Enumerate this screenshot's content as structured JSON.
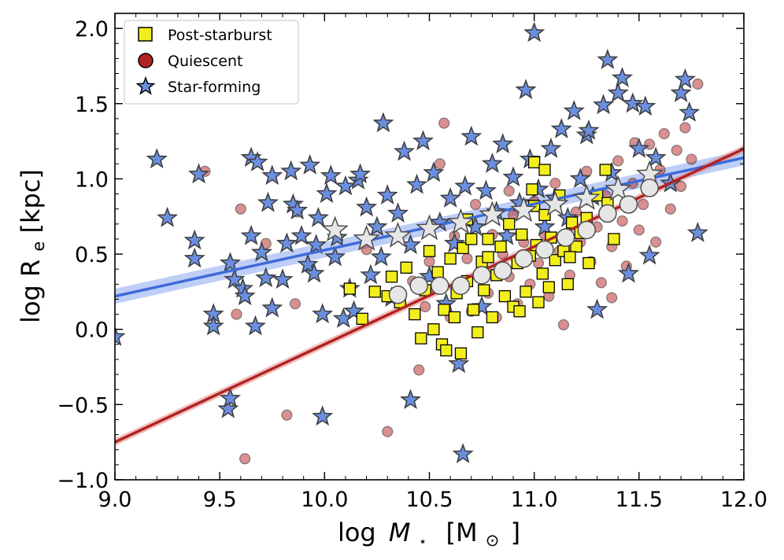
{
  "chart_data": {
    "type": "scatter",
    "title": "",
    "xlabel": "log M⋆ [M⊙]",
    "ylabel": "log R_e [kpc]",
    "xlim": [
      9.0,
      12.0
    ],
    "ylim": [
      -1.0,
      2.1
    ],
    "xticks": [
      9.0,
      9.5,
      10.0,
      10.5,
      11.0,
      11.5,
      12.0
    ],
    "xtick_labels": [
      "9.0",
      "9.5",
      "10.0",
      "10.5",
      "11.0",
      "11.5",
      "12.0"
    ],
    "yticks": [
      -1.0,
      -0.5,
      0.0,
      0.5,
      1.0,
      1.5,
      2.0
    ],
    "ytick_labels": [
      "−1.0",
      "−0.5",
      "0.0",
      "0.5",
      "1.0",
      "1.5",
      "2.0"
    ],
    "x_minor_step": 0.1,
    "y_minor_step": 0.1,
    "axis_title_x": {
      "prefix": "log",
      "symbol": "M",
      "sub": "⋆",
      "unit_open": "[M",
      "unit_sub": "⊙",
      "unit_close": "]"
    },
    "axis_title_y": {
      "prefix": "log  R",
      "sub": "e",
      "suffix": " [kpc]"
    },
    "legend": {
      "position": "top-left",
      "entries": [
        {
          "label": "Post-starburst",
          "marker": "square",
          "color": "#f2ee1c"
        },
        {
          "label": "Quiescent",
          "marker": "circle",
          "color": "#b22222"
        },
        {
          "label": "Star-forming",
          "marker": "star",
          "color": "#6b8fe0"
        }
      ]
    },
    "series": [
      {
        "name": "Star-forming",
        "marker": "star",
        "color": "#6b8fe0",
        "edge": "#404040",
        "points": [
          [
            9.0,
            -0.05
          ],
          [
            9.2,
            1.13
          ],
          [
            9.25,
            0.74
          ],
          [
            9.38,
            0.59
          ],
          [
            9.38,
            0.47
          ],
          [
            9.4,
            1.03
          ],
          [
            9.47,
            0.1
          ],
          [
            9.47,
            0.02
          ],
          [
            9.54,
            -0.53
          ],
          [
            9.55,
            -0.46
          ],
          [
            9.55,
            0.44
          ],
          [
            9.57,
            0.33
          ],
          [
            9.61,
            0.27
          ],
          [
            9.62,
            0.22
          ],
          [
            9.65,
            0.62
          ],
          [
            9.65,
            1.14
          ],
          [
            9.67,
            0.02
          ],
          [
            9.68,
            1.11
          ],
          [
            9.7,
            0.51
          ],
          [
            9.72,
            0.34
          ],
          [
            9.73,
            0.84
          ],
          [
            9.75,
            0.14
          ],
          [
            9.75,
            1.02
          ],
          [
            9.8,
            0.33
          ],
          [
            9.82,
            0.57
          ],
          [
            9.84,
            1.05
          ],
          [
            9.85,
            0.83
          ],
          [
            9.87,
            0.79
          ],
          [
            9.89,
            0.62
          ],
          [
            9.92,
            0.43
          ],
          [
            9.93,
            1.09
          ],
          [
            9.95,
            0.37
          ],
          [
            9.96,
            0.56
          ],
          [
            9.97,
            0.74
          ],
          [
            9.99,
            0.1
          ],
          [
            9.99,
            -0.58
          ],
          [
            10.01,
            0.9
          ],
          [
            10.03,
            1.02
          ],
          [
            10.05,
            0.48
          ],
          [
            10.06,
            0.61
          ],
          [
            10.09,
            0.07
          ],
          [
            10.1,
            0.95
          ],
          [
            10.12,
            0.27
          ],
          [
            10.14,
            0.12
          ],
          [
            10.16,
            0.99
          ],
          [
            10.17,
            1.03
          ],
          [
            10.2,
            0.81
          ],
          [
            10.22,
            0.36
          ],
          [
            10.25,
            0.68
          ],
          [
            10.27,
            0.48
          ],
          [
            10.28,
            1.37
          ],
          [
            10.3,
            0.89
          ],
          [
            10.32,
            0.21
          ],
          [
            10.35,
            0.77
          ],
          [
            10.38,
            1.18
          ],
          [
            10.41,
            -0.47
          ],
          [
            10.41,
            0.56
          ],
          [
            10.44,
            0.96
          ],
          [
            10.47,
            1.25
          ],
          [
            10.5,
            0.35
          ],
          [
            10.52,
            1.04
          ],
          [
            10.55,
            0.71
          ],
          [
            10.58,
            0.17
          ],
          [
            10.6,
            0.87
          ],
          [
            10.62,
            0.57
          ],
          [
            10.64,
            -0.23
          ],
          [
            10.66,
            -0.83
          ],
          [
            10.67,
            0.95
          ],
          [
            10.7,
            1.28
          ],
          [
            10.72,
            0.68
          ],
          [
            10.75,
            0.15
          ],
          [
            10.77,
            0.92
          ],
          [
            10.8,
            1.1
          ],
          [
            10.82,
            0.78
          ],
          [
            10.85,
            1.23
          ],
          [
            10.87,
            0.62
          ],
          [
            10.9,
            1.01
          ],
          [
            10.93,
            0.84
          ],
          [
            10.96,
            1.59
          ],
          [
            10.98,
            1.13
          ],
          [
            11.0,
            1.97
          ],
          [
            11.02,
            0.93
          ],
          [
            11.05,
            0.68
          ],
          [
            11.08,
            1.2
          ],
          [
            11.1,
            0.87
          ],
          [
            11.13,
            1.33
          ],
          [
            11.16,
            0.74
          ],
          [
            11.19,
            1.45
          ],
          [
            11.22,
            1.0
          ],
          [
            11.25,
            1.29
          ],
          [
            11.26,
            1.32
          ],
          [
            11.28,
            0.88
          ],
          [
            11.3,
            0.13
          ],
          [
            11.33,
            1.49
          ],
          [
            11.35,
            1.79
          ],
          [
            11.37,
            1.04
          ],
          [
            11.4,
            1.57
          ],
          [
            11.42,
            1.67
          ],
          [
            11.45,
            0.37
          ],
          [
            11.47,
            1.5
          ],
          [
            11.5,
            1.2
          ],
          [
            11.53,
            1.48
          ],
          [
            11.55,
            0.49
          ],
          [
            11.58,
            1.14
          ],
          [
            11.65,
            0.97
          ],
          [
            11.7,
            1.57
          ],
          [
            11.72,
            1.66
          ],
          [
            11.74,
            1.44
          ],
          [
            11.78,
            0.64
          ]
        ]
      },
      {
        "name": "Quiescent",
        "marker": "circle",
        "color": "#b22222",
        "edge": "#404040",
        "points": [
          [
            9.43,
            1.05
          ],
          [
            9.58,
            0.1
          ],
          [
            9.6,
            0.8
          ],
          [
            9.62,
            -0.86
          ],
          [
            9.72,
            0.57
          ],
          [
            9.82,
            -0.57
          ],
          [
            9.86,
            0.17
          ],
          [
            9.87,
            0.78
          ],
          [
            10.05,
            0.65
          ],
          [
            10.2,
            0.53
          ],
          [
            10.3,
            -0.68
          ],
          [
            10.42,
            0.32
          ],
          [
            10.45,
            -0.27
          ],
          [
            10.48,
            0.15
          ],
          [
            10.5,
            0.45
          ],
          [
            10.52,
            0.27
          ],
          [
            10.55,
            1.1
          ],
          [
            10.57,
            1.37
          ],
          [
            10.6,
            0.08
          ],
          [
            10.62,
            0.62
          ],
          [
            10.65,
            0.3
          ],
          [
            10.68,
            0.47
          ],
          [
            10.7,
            0.12
          ],
          [
            10.72,
            0.83
          ],
          [
            10.75,
            0.4
          ],
          [
            10.78,
            0.24
          ],
          [
            10.8,
            0.63
          ],
          [
            10.82,
            0.08
          ],
          [
            10.85,
            0.5
          ],
          [
            10.88,
            0.35
          ],
          [
            10.9,
            0.76
          ],
          [
            10.92,
            0.17
          ],
          [
            10.95,
            0.58
          ],
          [
            10.98,
            0.3
          ],
          [
            11.0,
            0.85
          ],
          [
            11.02,
            0.44
          ],
          [
            11.05,
            0.63
          ],
          [
            11.07,
            0.22
          ],
          [
            11.1,
            0.97
          ],
          [
            11.12,
            0.52
          ],
          [
            11.14,
            0.03
          ],
          [
            11.17,
            0.36
          ],
          [
            11.2,
            0.78
          ],
          [
            11.22,
            0.58
          ],
          [
            11.25,
            1.05
          ],
          [
            11.27,
            0.45
          ],
          [
            11.3,
            0.68
          ],
          [
            11.32,
            0.31
          ],
          [
            11.34,
            0.89
          ],
          [
            11.37,
            0.55
          ],
          [
            11.4,
            1.12
          ],
          [
            11.42,
            0.72
          ],
          [
            11.44,
            0.42
          ],
          [
            11.47,
            0.97
          ],
          [
            11.5,
            0.66
          ],
          [
            11.52,
            0.83
          ],
          [
            11.55,
            1.23
          ],
          [
            11.58,
            0.58
          ],
          [
            11.6,
            1.06
          ],
          [
            11.62,
            1.3
          ],
          [
            11.65,
            0.8
          ],
          [
            11.68,
            1.19
          ],
          [
            11.7,
            0.95
          ],
          [
            11.72,
            1.34
          ],
          [
            11.75,
            1.13
          ],
          [
            11.78,
            1.63
          ],
          [
            11.48,
            1.24
          ],
          [
            11.37,
            0.21
          ],
          [
            11.1,
            0.85
          ],
          [
            10.88,
            0.92
          ]
        ]
      },
      {
        "name": "Post-starburst",
        "marker": "square",
        "color": "#f2ee1c",
        "edge": "#000000",
        "points": [
          [
            10.12,
            0.27
          ],
          [
            10.18,
            0.07
          ],
          [
            10.24,
            0.25
          ],
          [
            10.3,
            0.22
          ],
          [
            10.32,
            0.35
          ],
          [
            10.36,
            0.18
          ],
          [
            10.39,
            0.41
          ],
          [
            10.43,
            0.1
          ],
          [
            10.46,
            -0.06
          ],
          [
            10.48,
            0.26
          ],
          [
            10.5,
            0.52
          ],
          [
            10.52,
            0.0
          ],
          [
            10.54,
            0.38
          ],
          [
            10.56,
            -0.1
          ],
          [
            10.57,
            0.13
          ],
          [
            10.58,
            -0.14
          ],
          [
            10.6,
            0.47
          ],
          [
            10.62,
            0.08
          ],
          [
            10.63,
            0.24
          ],
          [
            10.65,
            -0.16
          ],
          [
            10.66,
            0.54
          ],
          [
            10.68,
            0.32
          ],
          [
            10.7,
            0.6
          ],
          [
            10.71,
            0.13
          ],
          [
            10.73,
            -0.02
          ],
          [
            10.75,
            0.45
          ],
          [
            10.76,
            0.26
          ],
          [
            10.78,
            0.6
          ],
          [
            10.8,
            0.08
          ],
          [
            10.82,
            0.36
          ],
          [
            10.84,
            0.55
          ],
          [
            10.86,
            0.22
          ],
          [
            10.88,
            0.7
          ],
          [
            10.9,
            0.15
          ],
          [
            10.92,
            0.44
          ],
          [
            10.94,
            0.63
          ],
          [
            10.96,
            0.25
          ],
          [
            10.98,
            0.49
          ],
          [
            11.0,
            0.82
          ],
          [
            11.01,
            0.56
          ],
          [
            11.02,
            0.18
          ],
          [
            11.04,
            0.37
          ],
          [
            11.05,
            0.76
          ],
          [
            11.07,
            0.28
          ],
          [
            11.08,
            0.61
          ],
          [
            11.1,
            0.46
          ],
          [
            11.12,
            0.89
          ],
          [
            11.14,
            0.52
          ],
          [
            11.16,
            0.3
          ],
          [
            11.18,
            0.71
          ],
          [
            11.2,
            0.55
          ],
          [
            11.22,
            0.64
          ],
          [
            11.26,
            0.44
          ],
          [
            11.3,
            0.89
          ],
          [
            11.34,
            1.06
          ],
          [
            11.38,
            0.6
          ],
          [
            11.0,
            1.11
          ],
          [
            10.99,
            0.93
          ],
          [
            11.05,
            1.06
          ],
          [
            11.25,
            0.74
          ],
          [
            10.78,
            0.48
          ],
          [
            10.68,
            0.73
          ],
          [
            10.93,
            0.12
          ],
          [
            11.17,
            0.48
          ],
          [
            11.35,
            0.84
          ]
        ]
      }
    ],
    "binned_medians": [
      {
        "name": "Star-forming median",
        "marker": "star",
        "color": "#e6e6e6",
        "points": [
          [
            10.05,
            0.66
          ],
          [
            10.2,
            0.6
          ],
          [
            10.35,
            0.62
          ],
          [
            10.5,
            0.67
          ],
          [
            10.65,
            0.71
          ],
          [
            10.8,
            0.76
          ],
          [
            10.95,
            0.79
          ],
          [
            11.1,
            0.83
          ],
          [
            11.25,
            0.87
          ],
          [
            11.4,
            0.93
          ],
          [
            11.55,
            1.03
          ]
        ]
      },
      {
        "name": "Quiescent median",
        "marker": "circle",
        "color": "#e6e6e6",
        "points": [
          [
            10.35,
            0.23
          ],
          [
            10.45,
            0.29
          ],
          [
            10.55,
            0.29
          ],
          [
            10.65,
            0.29
          ],
          [
            10.75,
            0.36
          ],
          [
            10.85,
            0.39
          ],
          [
            10.95,
            0.47
          ],
          [
            11.05,
            0.53
          ],
          [
            11.15,
            0.61
          ],
          [
            11.25,
            0.66
          ],
          [
            11.35,
            0.77
          ],
          [
            11.45,
            0.83
          ],
          [
            11.55,
            0.94
          ]
        ]
      }
    ],
    "fits": [
      {
        "name": "Star-forming fit",
        "color": "#3d6bd9",
        "band_color": "#8aa5ef",
        "x": [
          9.0,
          12.0
        ],
        "y": [
          0.22,
          1.14
        ],
        "band_halfwidth": 0.05
      },
      {
        "name": "Quiescent fit",
        "color": "#b22222",
        "band_color": "#e38a8a",
        "x": [
          9.0,
          12.0
        ],
        "y": [
          -0.75,
          1.2
        ],
        "band_halfwidth": 0.025
      }
    ]
  }
}
